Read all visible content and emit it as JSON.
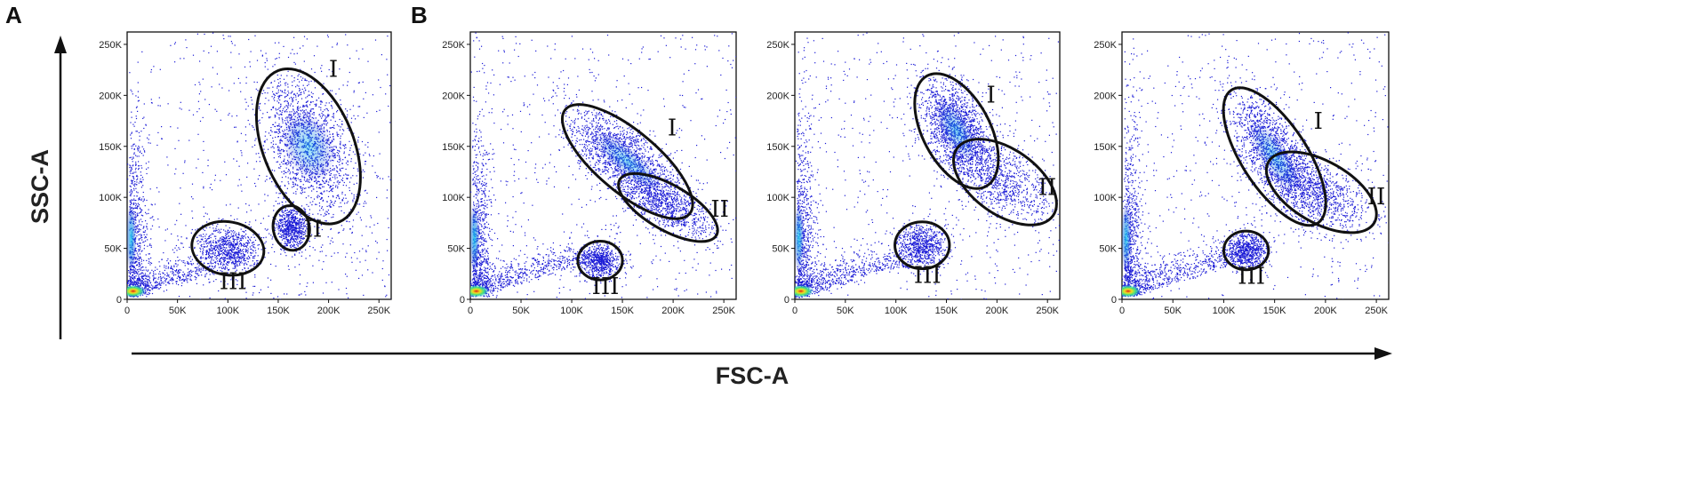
{
  "figure": {
    "panel_letters": [
      "A",
      "B"
    ],
    "xlabel": "FSC-A",
    "ylabel": "SSC-A",
    "colors": {
      "density_low": "#1a1ad6",
      "density_mid": "#18c8e8",
      "density_high": "#f0e020",
      "density_peak": "#e02010",
      "gate_stroke": "#111111",
      "background": "#ffffff"
    }
  },
  "chart_data": [
    {
      "type": "scatter",
      "panel": "A",
      "x_ticks": [
        "0",
        "50K",
        "100K",
        "150K",
        "200K",
        "250K"
      ],
      "y_ticks": [
        "0",
        "50K",
        "100K",
        "150K",
        "200K",
        "250K"
      ],
      "xlim": [
        0,
        262144
      ],
      "ylim": [
        0,
        262144
      ],
      "gates": [
        {
          "label": "I",
          "cx": 180000,
          "cy": 150000,
          "rx": 45000,
          "ry": 80000,
          "angle": 22
        },
        {
          "label": "II",
          "cx": 163000,
          "cy": 70000,
          "rx": 18000,
          "ry": 22000,
          "angle": 10
        },
        {
          "label": "III",
          "cx": 100000,
          "cy": 50000,
          "rx": 36000,
          "ry": 26000,
          "angle": -10
        }
      ]
    },
    {
      "type": "scatter",
      "panel": "B",
      "x_ticks": [
        "0",
        "50K",
        "100K",
        "150K",
        "200K",
        "250K"
      ],
      "y_ticks": [
        "0",
        "50K",
        "100K",
        "150K",
        "200K",
        "250K"
      ],
      "xlim": [
        0,
        262144
      ],
      "ylim": [
        0,
        262144
      ],
      "gates": [
        {
          "label": "I",
          "cx": 155000,
          "cy": 135000,
          "rx": 80000,
          "ry": 30000,
          "angle": -40
        },
        {
          "label": "II",
          "cx": 195000,
          "cy": 90000,
          "rx": 55000,
          "ry": 22000,
          "angle": -30
        },
        {
          "label": "III",
          "cx": 128000,
          "cy": 38000,
          "rx": 22000,
          "ry": 19000,
          "angle": 0
        }
      ]
    },
    {
      "type": "scatter",
      "panel": "B",
      "x_ticks": [
        "0",
        "50K",
        "100K",
        "150K",
        "200K",
        "250K"
      ],
      "y_ticks": [
        "0",
        "50K",
        "100K",
        "150K",
        "200K",
        "250K"
      ],
      "xlim": [
        0,
        262144
      ],
      "ylim": [
        0,
        262144
      ],
      "gates": [
        {
          "label": "I",
          "cx": 160000,
          "cy": 165000,
          "rx": 62000,
          "ry": 33000,
          "angle": -62
        },
        {
          "label": "II",
          "cx": 208000,
          "cy": 115000,
          "rx": 58000,
          "ry": 32000,
          "angle": -35
        },
        {
          "label": "III",
          "cx": 126000,
          "cy": 53000,
          "rx": 27000,
          "ry": 23000,
          "angle": 0
        }
      ]
    },
    {
      "type": "scatter",
      "panel": "B",
      "x_ticks": [
        "0",
        "50K",
        "100K",
        "150K",
        "200K",
        "250K"
      ],
      "y_ticks": [
        "0",
        "50K",
        "100K",
        "150K",
        "200K",
        "250K"
      ],
      "xlim": [
        0,
        262144
      ],
      "ylim": [
        0,
        262144
      ],
      "gates": [
        {
          "label": "I",
          "cx": 150000,
          "cy": 140000,
          "rx": 78000,
          "ry": 32000,
          "angle": -57
        },
        {
          "label": "II",
          "cx": 196000,
          "cy": 105000,
          "rx": 60000,
          "ry": 30000,
          "angle": -30
        },
        {
          "label": "III",
          "cx": 122000,
          "cy": 48000,
          "rx": 22000,
          "ry": 19000,
          "angle": 0
        }
      ]
    }
  ]
}
